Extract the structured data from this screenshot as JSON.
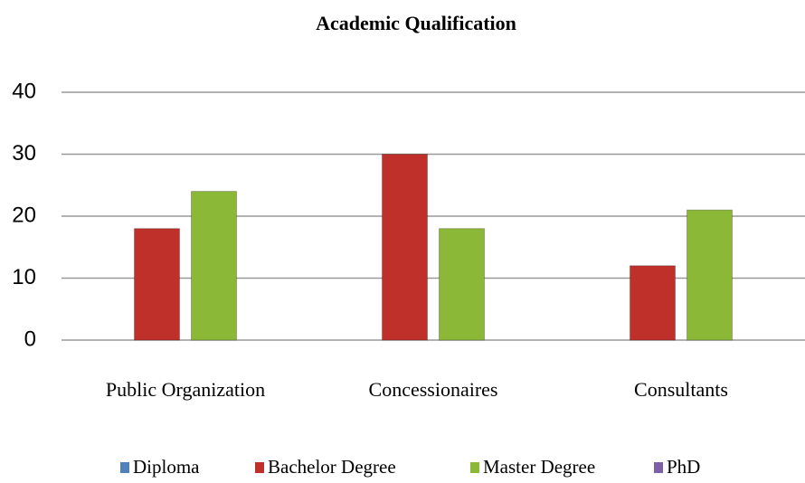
{
  "chart_data": {
    "type": "bar",
    "title": "Academic Qualification",
    "categories": [
      "Public Organization",
      "Concessionaires",
      "Consultants"
    ],
    "series": [
      {
        "name": "Diploma",
        "color": "#4f81bd",
        "values": [
          0,
          0,
          0
        ]
      },
      {
        "name": "Bachelor Degree",
        "color": "#c0302b",
        "values": [
          18,
          30,
          12
        ]
      },
      {
        "name": "Master Degree",
        "color": "#8cb838",
        "values": [
          24,
          18,
          21
        ]
      },
      {
        "name": "PhD",
        "color": "#7f5fa8",
        "values": [
          0,
          0,
          0
        ]
      }
    ],
    "ylim": [
      0,
      40
    ],
    "yticks": [
      0,
      10,
      20,
      30,
      40
    ],
    "grid": true,
    "legend": "bottom"
  }
}
